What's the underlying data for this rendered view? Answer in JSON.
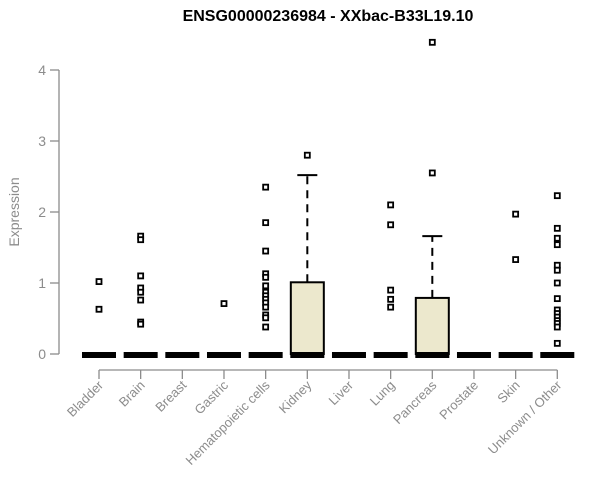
{
  "colors": {
    "box_fill": "#ece8cd",
    "box_border": "#000000",
    "median_bar": "#000000",
    "marker_stroke": "#000000",
    "marker_fill": "#ffffff",
    "axis": "#8c8c8c",
    "tick_label": "#8c8c8c",
    "title": "#000000"
  },
  "chart_data": {
    "type": "boxplot",
    "title": "ENSG00000236984 - XXbac-B33L19.10",
    "ylabel": "Expression",
    "xlabel": "",
    "ylim": [
      0,
      4
    ],
    "yticks": [
      "0",
      "1",
      "2",
      "3",
      "4"
    ],
    "grid": false,
    "legend": false,
    "categories": [
      "Bladder",
      "Brain",
      "Breast",
      "Gastric",
      "Hematopoietic cells",
      "Kidney",
      "Liver",
      "Lung",
      "Pancreas",
      "Prostate",
      "Skin",
      "Unknown / Other"
    ],
    "boxes": [
      {
        "category": "Bladder",
        "q1": 0,
        "median": 0,
        "q3": 0,
        "whisker_low": 0,
        "whisker_high": 0,
        "outliers": [
          1.02,
          0.63
        ]
      },
      {
        "category": "Brain",
        "q1": 0,
        "median": 0,
        "q3": 0,
        "whisker_low": 0,
        "whisker_high": 0,
        "outliers": [
          1.66,
          1.61,
          1.1,
          0.93,
          0.87,
          0.76,
          0.45,
          0.42
        ]
      },
      {
        "category": "Breast",
        "q1": 0,
        "median": 0,
        "q3": 0,
        "whisker_low": 0,
        "whisker_high": 0,
        "outliers": []
      },
      {
        "category": "Gastric",
        "q1": 0,
        "median": 0,
        "q3": 0,
        "whisker_low": 0,
        "whisker_high": 0,
        "outliers": [
          0.71
        ]
      },
      {
        "category": "Hematopoietic cells",
        "q1": 0,
        "median": 0,
        "q3": 0,
        "whisker_low": 0,
        "whisker_high": 0,
        "outliers": [
          2.35,
          1.85,
          1.45,
          1.13,
          1.08,
          0.96,
          0.87,
          0.82,
          0.77,
          0.72,
          0.66,
          0.55,
          0.51,
          0.38
        ]
      },
      {
        "category": "Kidney",
        "q1": 0,
        "median": 0,
        "q3": 1.01,
        "whisker_low": 0,
        "whisker_high": 2.52,
        "outliers": [
          2.8
        ]
      },
      {
        "category": "Liver",
        "q1": 0,
        "median": 0,
        "q3": 0,
        "whisker_low": 0,
        "whisker_high": 0,
        "outliers": []
      },
      {
        "category": "Lung",
        "q1": 0,
        "median": 0,
        "q3": 0,
        "whisker_low": 0,
        "whisker_high": 0,
        "outliers": [
          2.1,
          1.82,
          0.9,
          0.77,
          0.66
        ]
      },
      {
        "category": "Pancreas",
        "q1": 0,
        "median": 0,
        "q3": 0.79,
        "whisker_low": 0,
        "whisker_high": 1.66,
        "outliers": [
          2.55,
          4.39
        ]
      },
      {
        "category": "Prostate",
        "q1": 0,
        "median": 0,
        "q3": 0,
        "whisker_low": 0,
        "whisker_high": 0,
        "outliers": []
      },
      {
        "category": "Skin",
        "q1": 0,
        "median": 0,
        "q3": 0,
        "whisker_low": 0,
        "whisker_high": 0,
        "outliers": [
          1.97,
          1.33
        ]
      },
      {
        "category": "Unknown / Other",
        "q1": 0,
        "median": 0,
        "q3": 0,
        "whisker_low": 0,
        "whisker_high": 0,
        "outliers": [
          2.23,
          1.77,
          1.63,
          1.54,
          1.25,
          1.18,
          1.0,
          0.78,
          0.62,
          0.57,
          0.52,
          0.47,
          0.43,
          0.38,
          0.15
        ]
      }
    ]
  }
}
